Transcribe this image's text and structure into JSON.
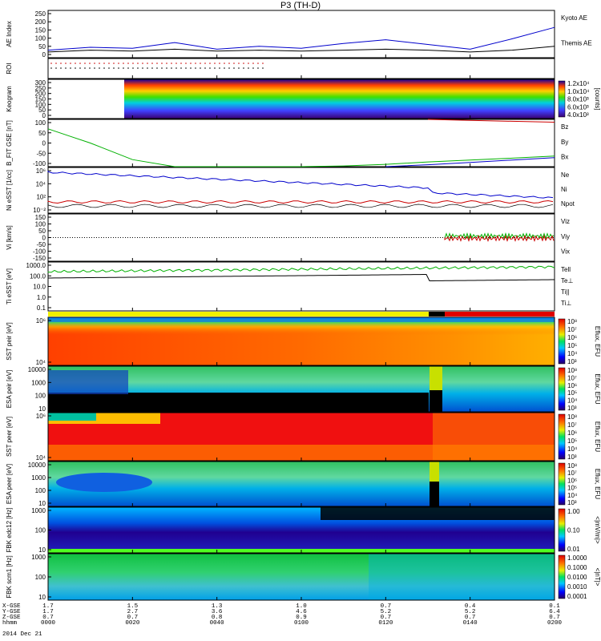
{
  "title": "P3 (TH-D)",
  "date_label": "2014 Dec 21",
  "footer_labels": [
    "X-GSE",
    "Y-GSE",
    "Z-GSE",
    "hhmm"
  ],
  "footer_cols": [
    [
      "1.7",
      "1.7",
      "0.7",
      "0000"
    ],
    [
      "1.5",
      "2.7",
      "0.7",
      "0020"
    ],
    [
      "1.3",
      "3.6",
      "0.8",
      "0040"
    ],
    [
      "1.0",
      "4.6",
      "0.9",
      "0100"
    ],
    [
      "0.7",
      "5.2",
      "0.7",
      "0120"
    ],
    [
      "0.4",
      "5.2",
      "0.7",
      "0140"
    ],
    [
      "0.1",
      "6.4",
      "0.7",
      "0200"
    ]
  ],
  "colors": {
    "blue": "#0000cc",
    "red": "#cc0000",
    "green": "#00b000",
    "black": "#000000"
  },
  "chart_data": [
    {
      "type": "line",
      "ylabel": "AE Index",
      "ylim": [
        0,
        250
      ],
      "yticks": [
        "250",
        "200",
        "150",
        "100",
        "50",
        "0"
      ],
      "x": [
        0,
        10,
        20,
        30,
        40,
        50,
        60,
        70,
        80,
        90,
        100,
        110,
        120
      ],
      "series": [
        {
          "name": "Kyoto AE",
          "color": "#0000cc",
          "values": [
            40,
            55,
            50,
            80,
            45,
            60,
            50,
            75,
            95,
            70,
            45,
            100,
            160
          ]
        },
        {
          "name": "Themis AE",
          "color": "#000000",
          "values": [
            30,
            40,
            35,
            45,
            35,
            40,
            35,
            40,
            45,
            40,
            30,
            40,
            60
          ]
        }
      ]
    },
    {
      "type": "line",
      "ylabel": "ROI",
      "ylim": [
        0,
        1
      ],
      "yticks": []
    },
    {
      "type": "heatmap",
      "ylabel": "Keogram",
      "ylim": [
        0,
        300
      ],
      "yticks": [
        "300",
        "250",
        "200",
        "150",
        "100",
        "50",
        "0"
      ],
      "colorbar": {
        "label": "[counts]",
        "ticks": [
          "1.2x10⁴",
          "1.0x10⁴",
          "8.0x10³",
          "6.0x10³",
          "4.0x10³"
        ]
      }
    },
    {
      "type": "line",
      "ylabel": "B_FIT GSE [nT]",
      "ylim": [
        -100,
        100
      ],
      "yticks": [
        "100",
        "50",
        "0",
        "-50",
        "-100"
      ],
      "x": [
        0,
        5,
        10,
        20,
        30,
        40,
        50,
        60,
        70,
        80,
        90,
        100,
        110,
        120
      ],
      "series": [
        {
          "name": "Bz",
          "color": "#cc0000",
          "values": [
            null,
            null,
            null,
            null,
            null,
            null,
            null,
            null,
            null,
            null,
            100,
            96,
            92,
            88
          ]
        },
        {
          "name": "By",
          "color": "#00b000",
          "values": [
            60,
            30,
            0,
            -70,
            -100,
            -100,
            -100,
            -100,
            -97,
            -90,
            -80,
            -72,
            -64,
            -55
          ]
        },
        {
          "name": "Bx",
          "color": "#0000cc",
          "values": [
            null,
            null,
            null,
            null,
            null,
            null,
            null,
            null,
            null,
            -100,
            -92,
            -82,
            -72,
            -62
          ]
        }
      ]
    },
    {
      "type": "line",
      "ylabel": "Ni eSST [1/cc]",
      "yticks": [
        "10⁶",
        "10⁴",
        "10²",
        "10⁻²"
      ],
      "series": [
        {
          "name": "Ne",
          "color": "#cc0000"
        },
        {
          "name": "Ni",
          "color": "#0000cc"
        },
        {
          "name": "Npot",
          "color": "#000000"
        }
      ]
    },
    {
      "type": "line",
      "ylabel": "Vi [km/s]",
      "ylim": [
        -150,
        150
      ],
      "yticks": [
        "150",
        "100",
        "50",
        "0",
        "-50",
        "-100",
        "-150"
      ],
      "series": [
        {
          "name": "Viz",
          "color": "#cc0000"
        },
        {
          "name": "Viy",
          "color": "#00b000"
        },
        {
          "name": "Vix",
          "color": "#0000cc"
        }
      ]
    },
    {
      "type": "line",
      "ylabel": "Ti eSST [eV]",
      "yticks": [
        "1000.0",
        "100.0",
        "10.0",
        "1.0",
        "0.1"
      ],
      "series": [
        {
          "name": "Tell",
          "color": "#000000"
        },
        {
          "name": "Te⊥",
          "color": "#cc0000"
        },
        {
          "name": "Ti||",
          "color": "#00b000"
        },
        {
          "name": "Ti⊥",
          "color": "#0000cc"
        }
      ]
    },
    {
      "type": "heatmap",
      "ylabel": "SST peir [eV]",
      "yticks": [
        "10⁶",
        "10⁴"
      ],
      "colorbar": {
        "label": "Eflux, EFU",
        "ticks": [
          "10⁸",
          "10⁷",
          "10⁶",
          "10⁵",
          "10⁴",
          "10³"
        ]
      }
    },
    {
      "type": "heatmap",
      "ylabel": "ESA peir [eV]",
      "yticks": [
        "10000",
        "1000",
        "100",
        "10"
      ],
      "colorbar": {
        "label": "Eflux, EFU",
        "ticks": [
          "10⁸",
          "10⁷",
          "10⁶",
          "10⁵",
          "10⁴",
          "10³"
        ]
      }
    },
    {
      "type": "heatmap",
      "ylabel": "SST peer [eV]",
      "yticks": [
        "10⁶",
        "10⁴"
      ],
      "colorbar": {
        "label": "Eflux, EFU",
        "ticks": [
          "10⁸",
          "10⁷",
          "10⁶",
          "10⁵",
          "10⁴",
          "10³"
        ]
      }
    },
    {
      "type": "heatmap",
      "ylabel": "ESA peer [eV]",
      "yticks": [
        "10000",
        "1000",
        "100",
        "10"
      ],
      "colorbar": {
        "label": "Eflux, EFU",
        "ticks": [
          "10⁸",
          "10⁷",
          "10⁶",
          "10⁵",
          "10⁴",
          "10³"
        ]
      }
    },
    {
      "type": "heatmap",
      "ylabel": "FBK edc12 [Hz]",
      "yticks": [
        "1000",
        "100",
        "10"
      ],
      "colorbar": {
        "label": "<|mV/m|>",
        "ticks": [
          "1.00",
          "0.10",
          "0.01"
        ]
      }
    },
    {
      "type": "heatmap",
      "ylabel": "FBK scm1 [Hz]",
      "yticks": [
        "1000",
        "100",
        "10"
      ],
      "colorbar": {
        "label": "<|nT|>",
        "ticks": [
          "1.0000",
          "0.1000",
          "0.0100",
          "0.0010",
          "0.0001"
        ]
      }
    }
  ]
}
